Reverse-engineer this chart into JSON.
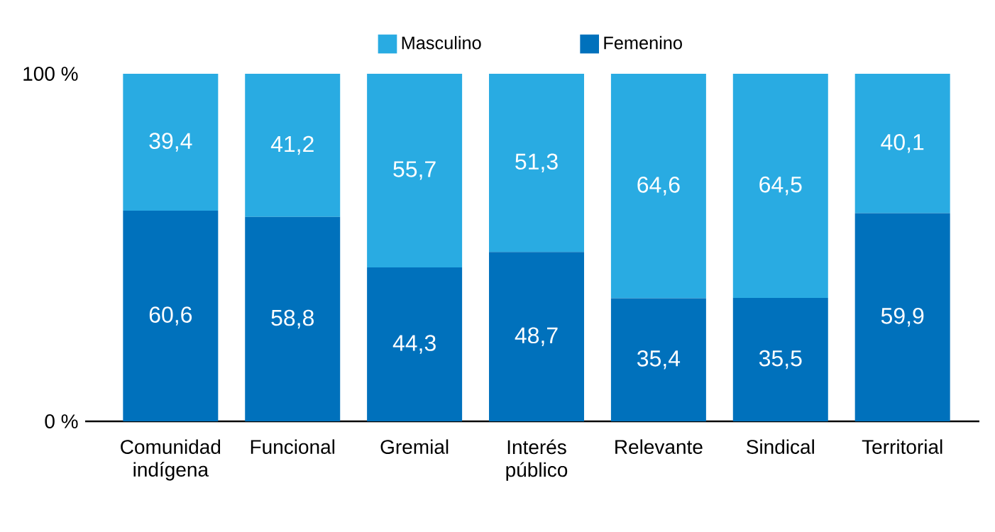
{
  "chart_data": {
    "type": "bar",
    "stacked": true,
    "categories": [
      "Comunidad indígena",
      "Funcional",
      "Gremial",
      "Interés público",
      "Relevante",
      "Sindical",
      "Territorial"
    ],
    "series": [
      {
        "name": "Femenino",
        "color": "#0071bc",
        "values": [
          60.6,
          58.8,
          44.3,
          48.7,
          35.4,
          35.5,
          59.9
        ],
        "value_labels": [
          "60,6",
          "58,8",
          "44,3",
          "48,7",
          "35,4",
          "35,5",
          "59,9"
        ]
      },
      {
        "name": "Masculino",
        "color": "#29abe2",
        "values": [
          39.4,
          41.2,
          55.7,
          51.3,
          64.6,
          64.5,
          40.1
        ],
        "value_labels": [
          "39,4",
          "41,2",
          "55,7",
          "51,3",
          "64,6",
          "64,5",
          "40,1"
        ]
      }
    ],
    "ylim": [
      0,
      100
    ],
    "yticks": [
      {
        "value": 0,
        "label": "0 %"
      },
      {
        "value": 100,
        "label": "100 %"
      }
    ],
    "legend": "top",
    "grid": false
  }
}
